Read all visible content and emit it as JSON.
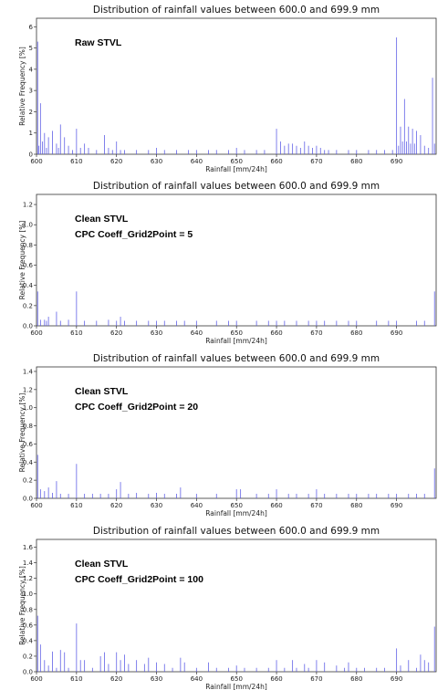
{
  "chart_data": [
    {
      "type": "bar",
      "title": "Distribution of rainfall values between 600.0 and 699.9 mm",
      "xlabel": "Rainfall [mm/24h]",
      "ylabel": "Relative Frequency [%]",
      "annotation": [
        "Raw STVL"
      ],
      "xlim": [
        600,
        699.9
      ],
      "ylim": [
        0,
        6.4
      ],
      "yticks": [
        0,
        1,
        2,
        3,
        4,
        5,
        6
      ],
      "ytick_labels": [
        "0",
        "1",
        "2",
        "3",
        "4",
        "5",
        "6"
      ],
      "xticks": [
        600,
        610,
        620,
        630,
        640,
        650,
        660,
        670,
        680,
        690
      ],
      "xtick_labels": [
        "600",
        "610",
        "620",
        "630",
        "640",
        "650",
        "660",
        "670",
        "680",
        "690"
      ],
      "bar_color": "#5a5ae6",
      "x": [
        600.3,
        600.6,
        601,
        601.5,
        602,
        602.5,
        603,
        604,
        605,
        605.5,
        606,
        607,
        608,
        609,
        610,
        611,
        612,
        613,
        615,
        617,
        618,
        619,
        620,
        621,
        622,
        625,
        628,
        630,
        632,
        635,
        638,
        640,
        643,
        645,
        648,
        650,
        652,
        655,
        657,
        660,
        661,
        662,
        663,
        664,
        665,
        666,
        667,
        668,
        669,
        670,
        671,
        672,
        673,
        675,
        678,
        680,
        683,
        685,
        687,
        689,
        690,
        690.5,
        691,
        691.5,
        692,
        692.5,
        693,
        693.5,
        694,
        694.5,
        695,
        696,
        697,
        698,
        699,
        699.5
      ],
      "values": [
        5.3,
        0.4,
        2.4,
        0.6,
        1.0,
        0.3,
        0.8,
        1.1,
        0.5,
        0.3,
        1.4,
        0.8,
        0.4,
        0.2,
        1.2,
        0.3,
        0.5,
        0.3,
        0.2,
        0.9,
        0.3,
        0.2,
        0.6,
        0.2,
        0.2,
        0.2,
        0.2,
        0.3,
        0.2,
        0.2,
        0.2,
        0.2,
        0.2,
        0.2,
        0.2,
        0.3,
        0.2,
        0.2,
        0.2,
        1.2,
        0.6,
        0.4,
        0.5,
        0.5,
        0.4,
        0.3,
        0.6,
        0.4,
        0.3,
        0.4,
        0.3,
        0.2,
        0.2,
        0.2,
        0.2,
        0.2,
        0.2,
        0.2,
        0.2,
        0.2,
        5.5,
        0.4,
        1.3,
        0.6,
        2.6,
        0.6,
        1.3,
        0.5,
        1.2,
        0.5,
        1.1,
        0.9,
        0.4,
        0.3,
        3.6,
        0.5
      ]
    },
    {
      "type": "bar",
      "title": "Distribution of rainfall values between 600.0 and 699.9 mm",
      "xlabel": "Rainfall [mm/24h]",
      "ylabel": "Relative Frequency [%]",
      "annotation": [
        "Clean STVL",
        "CPC Coeff_Grid2Point = 5"
      ],
      "xlim": [
        600,
        699.9
      ],
      "ylim": [
        0,
        1.3
      ],
      "yticks": [
        0,
        0.2,
        0.4,
        0.6,
        0.8,
        1.0,
        1.2
      ],
      "ytick_labels": [
        "0.0",
        "0.2",
        "0.4",
        "0.6",
        "0.8",
        "1.0",
        "1.2"
      ],
      "xticks": [
        600,
        610,
        620,
        630,
        640,
        650,
        660,
        670,
        680,
        690
      ],
      "xtick_labels": [
        "600",
        "610",
        "620",
        "630",
        "640",
        "650",
        "660",
        "670",
        "680",
        "690"
      ],
      "bar_color": "#5a5ae6",
      "x": [
        600.3,
        601,
        602,
        602.5,
        603,
        605,
        606,
        608,
        610,
        612,
        615,
        618,
        620,
        621,
        622,
        625,
        628,
        630,
        632,
        635,
        637,
        640,
        645,
        648,
        650,
        655,
        658,
        660,
        662,
        665,
        668,
        670,
        672,
        675,
        678,
        680,
        685,
        688,
        690,
        695,
        697,
        699.5
      ],
      "values": [
        0.34,
        0.06,
        0.06,
        0.05,
        0.09,
        0.14,
        0.05,
        0.06,
        0.34,
        0.05,
        0.05,
        0.06,
        0.05,
        0.09,
        0.05,
        0.05,
        0.05,
        0.05,
        0.05,
        0.05,
        0.05,
        0.05,
        0.05,
        0.05,
        0.05,
        0.05,
        0.05,
        0.05,
        0.05,
        0.05,
        0.05,
        0.05,
        0.05,
        0.05,
        0.05,
        0.05,
        0.05,
        0.05,
        0.05,
        0.05,
        0.05,
        0.34
      ]
    },
    {
      "type": "bar",
      "title": "Distribution of rainfall values between 600.0 and 699.9 mm",
      "xlabel": "Rainfall [mm/24h]",
      "ylabel": "Relative Frequency [%]",
      "annotation": [
        "Clean STVL",
        "CPC Coeff_Grid2Point = 20"
      ],
      "xlim": [
        600,
        699.9
      ],
      "ylim": [
        0,
        1.45
      ],
      "yticks": [
        0,
        0.2,
        0.4,
        0.6,
        0.8,
        1.0,
        1.2,
        1.4
      ],
      "ytick_labels": [
        "0.0",
        "0.2",
        "0.4",
        "0.6",
        "0.8",
        "1.0",
        "1.2",
        "1.4"
      ],
      "xticks": [
        600,
        610,
        620,
        630,
        640,
        650,
        660,
        670,
        680,
        690
      ],
      "xtick_labels": [
        "600",
        "610",
        "620",
        "630",
        "640",
        "650",
        "660",
        "670",
        "680",
        "690"
      ],
      "bar_color": "#5a5ae6",
      "x": [
        600.3,
        601,
        602,
        603,
        604,
        605,
        606,
        608,
        610,
        612,
        614,
        616,
        618,
        620,
        621,
        623,
        625,
        628,
        630,
        632,
        635,
        636,
        640,
        645,
        650,
        651,
        655,
        658,
        660,
        663,
        665,
        668,
        670,
        672,
        675,
        678,
        680,
        683,
        685,
        688,
        690,
        693,
        695,
        697,
        699.5
      ],
      "values": [
        0.48,
        0.1,
        0.08,
        0.12,
        0.06,
        0.19,
        0.05,
        0.05,
        0.38,
        0.05,
        0.05,
        0.05,
        0.05,
        0.1,
        0.18,
        0.05,
        0.06,
        0.05,
        0.06,
        0.05,
        0.05,
        0.12,
        0.05,
        0.05,
        0.1,
        0.1,
        0.05,
        0.05,
        0.1,
        0.05,
        0.05,
        0.05,
        0.1,
        0.05,
        0.05,
        0.05,
        0.05,
        0.05,
        0.05,
        0.05,
        0.05,
        0.05,
        0.05,
        0.05,
        0.33
      ]
    },
    {
      "type": "bar",
      "title": "Distribution of rainfall values between 600.0 and 699.9 mm",
      "xlabel": "Rainfall [mm/24h]",
      "ylabel": "Relative Frequency [%]",
      "annotation": [
        "Clean STVL",
        "CPC Coeff_Grid2Point = 100"
      ],
      "xlim": [
        600,
        699.9
      ],
      "ylim": [
        0,
        1.7
      ],
      "yticks": [
        0,
        0.2,
        0.4,
        0.6,
        0.8,
        1.0,
        1.2,
        1.4,
        1.6
      ],
      "ytick_labels": [
        "0.0",
        "0.2",
        "0.4",
        "0.6",
        "0.8",
        "1.0",
        "1.2",
        "1.4",
        "1.6"
      ],
      "xticks": [
        600,
        610,
        620,
        630,
        640,
        650,
        660,
        670,
        680,
        690
      ],
      "xtick_labels": [
        "600",
        "610",
        "620",
        "630",
        "640",
        "650",
        "660",
        "670",
        "680",
        "690"
      ],
      "bar_color": "#5a5ae6",
      "x": [
        600.3,
        601,
        602,
        603,
        604,
        605,
        606,
        607,
        608,
        610,
        611,
        612,
        614,
        616,
        617,
        618,
        620,
        621,
        622,
        623,
        625,
        627,
        628,
        630,
        632,
        634,
        636,
        637,
        640,
        643,
        645,
        648,
        650,
        652,
        655,
        658,
        660,
        662,
        664,
        665,
        667,
        668,
        670,
        672,
        675,
        677,
        678,
        680,
        682,
        685,
        687,
        690,
        691,
        693,
        695,
        696,
        697,
        698,
        699.5
      ],
      "values": [
        0.72,
        0.35,
        0.15,
        0.08,
        0.26,
        0.05,
        0.28,
        0.25,
        0.05,
        0.62,
        0.15,
        0.15,
        0.05,
        0.2,
        0.25,
        0.1,
        0.25,
        0.15,
        0.22,
        0.1,
        0.15,
        0.1,
        0.18,
        0.12,
        0.1,
        0.05,
        0.18,
        0.12,
        0.05,
        0.12,
        0.05,
        0.05,
        0.08,
        0.05,
        0.05,
        0.05,
        0.15,
        0.05,
        0.15,
        0.05,
        0.1,
        0.05,
        0.15,
        0.12,
        0.08,
        0.05,
        0.12,
        0.05,
        0.05,
        0.05,
        0.05,
        0.3,
        0.08,
        0.15,
        0.05,
        0.22,
        0.15,
        0.12,
        0.58
      ]
    }
  ]
}
